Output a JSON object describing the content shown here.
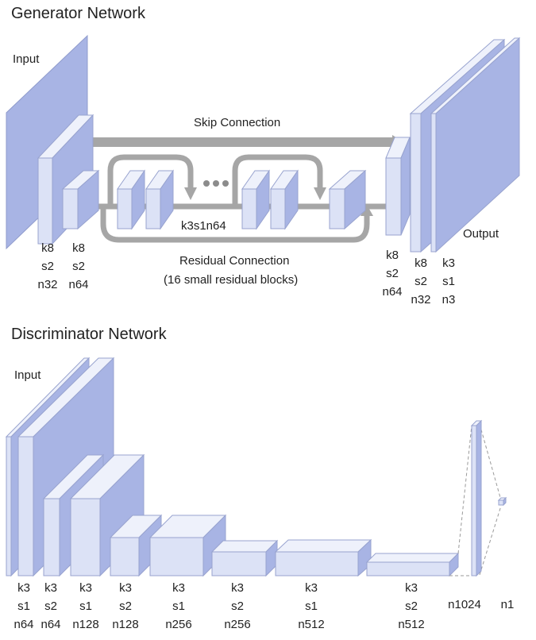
{
  "generator": {
    "title": "Generator Network",
    "input_label": "Input",
    "output_label": "Output",
    "skip_label": "Skip Connection",
    "residual_label": "Residual Connection",
    "residual_note": "(16 small residual blocks)",
    "block_label": "k3s1n64",
    "layers": [
      {
        "k": "k8",
        "s": "s2",
        "n": "n32"
      },
      {
        "k": "k8",
        "s": "s2",
        "n": "n64"
      },
      {
        "k": "k8",
        "s": "s2",
        "n": "n64"
      },
      {
        "k": "k8",
        "s": "s2",
        "n": "n32"
      },
      {
        "k": "k3",
        "s": "s1",
        "n": "n3"
      }
    ],
    "colors": {
      "face": "#a8b4e4",
      "side": "#dce2f6",
      "top": "#eef1fb",
      "arrow": "#a6a6a6"
    }
  },
  "discriminator": {
    "title": "Discriminator Network",
    "input_label": "Input",
    "layers": [
      {
        "k": "k3",
        "s": "s1",
        "n": "n64"
      },
      {
        "k": "k3",
        "s": "s2",
        "n": "n64"
      },
      {
        "k": "k3",
        "s": "s1",
        "n": "n128"
      },
      {
        "k": "k3",
        "s": "s2",
        "n": "n128"
      },
      {
        "k": "k3",
        "s": "s1",
        "n": "n256"
      },
      {
        "k": "k3",
        "s": "s2",
        "n": "n256"
      },
      {
        "k": "k3",
        "s": "s1",
        "n": "n512"
      },
      {
        "k": "k3",
        "s": "s2",
        "n": "n512"
      }
    ],
    "fc_labels": [
      "n1024",
      "n1"
    ]
  }
}
